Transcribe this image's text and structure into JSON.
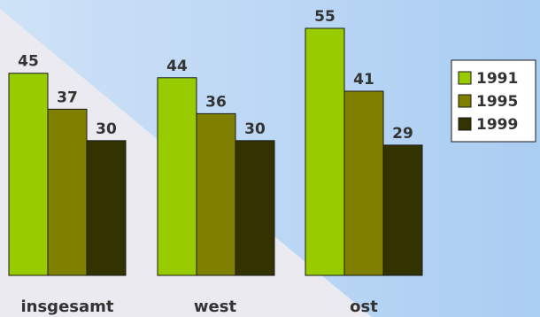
{
  "chart_data": {
    "type": "bar",
    "categories": [
      "insgesamt",
      "west",
      "ost"
    ],
    "series": [
      {
        "name": "1991",
        "values": [
          45,
          44,
          55
        ],
        "color": "#99cc00"
      },
      {
        "name": "1995",
        "values": [
          37,
          36,
          41
        ],
        "color": "#808000"
      },
      {
        "name": "1999",
        "values": [
          30,
          30,
          29
        ],
        "color": "#333300"
      }
    ],
    "title": "",
    "xlabel": "",
    "ylabel": "",
    "ylim": [
      0,
      55
    ],
    "grid": false,
    "legend_position": "right",
    "data_labels": true
  },
  "colors": {
    "background_light": "#eaeaf0",
    "background_blue": "#b0d0f4",
    "bar_edge": "#1a1a1a",
    "text": "#333333"
  }
}
